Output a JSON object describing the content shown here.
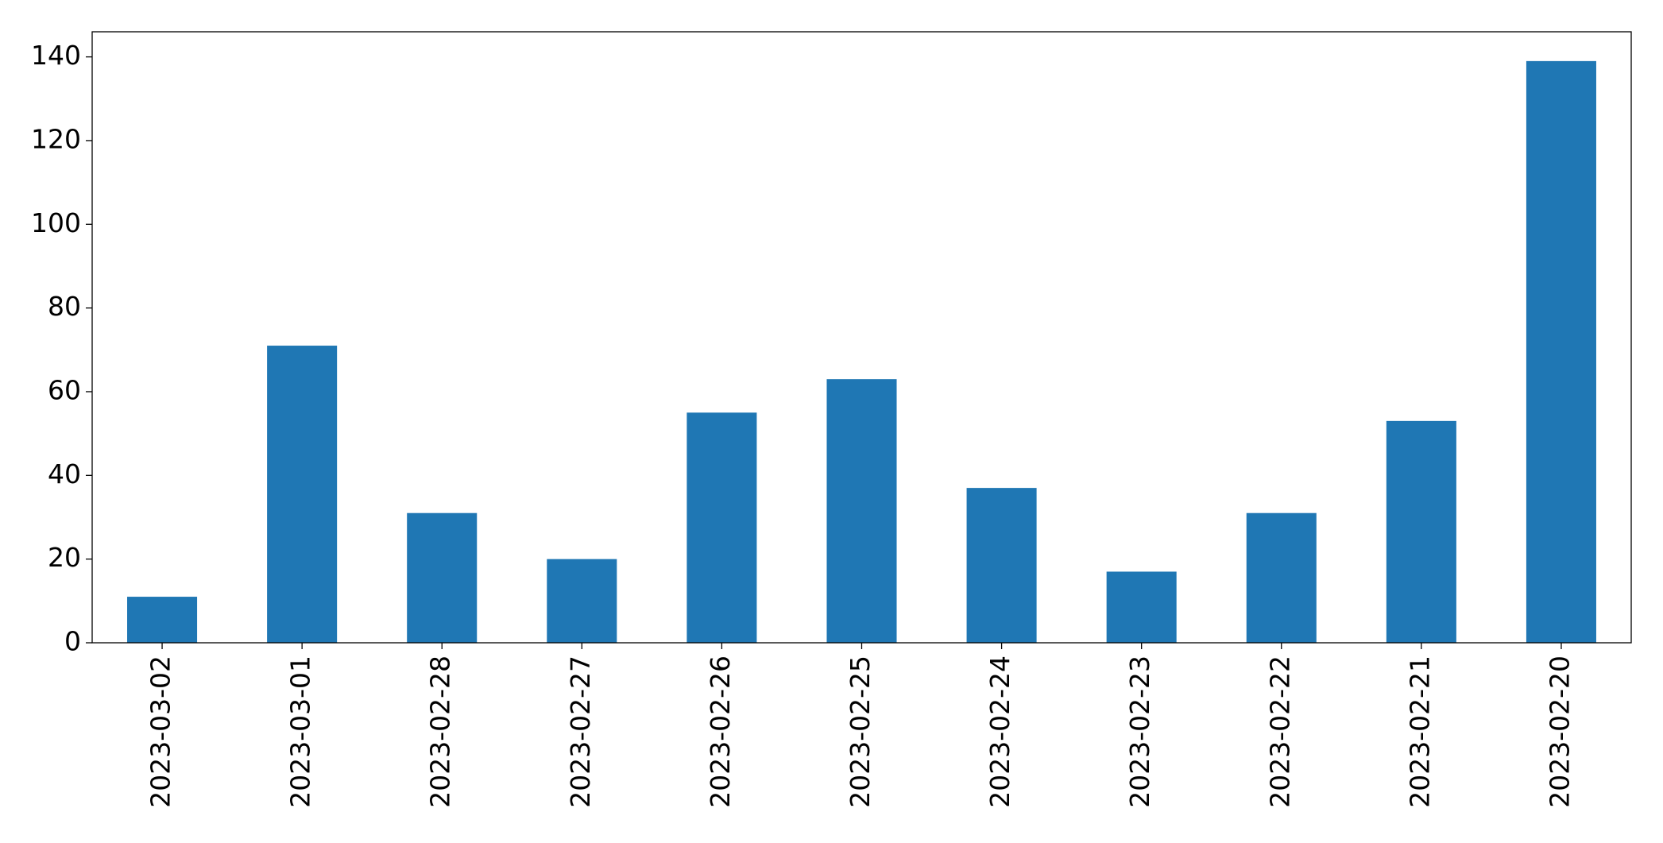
{
  "chart_data": {
    "type": "bar",
    "categories": [
      "2023-03-02",
      "2023-03-01",
      "2023-02-28",
      "2023-02-27",
      "2023-02-26",
      "2023-02-25",
      "2023-02-24",
      "2023-02-23",
      "2023-02-22",
      "2023-02-21",
      "2023-02-20"
    ],
    "values": [
      11,
      71,
      31,
      20,
      55,
      63,
      37,
      17,
      31,
      53,
      139
    ],
    "color": "#1f77b4",
    "ylim": [
      0,
      146
    ],
    "yticks": [
      0,
      20,
      40,
      60,
      80,
      100,
      120,
      140
    ],
    "grid": false
  }
}
